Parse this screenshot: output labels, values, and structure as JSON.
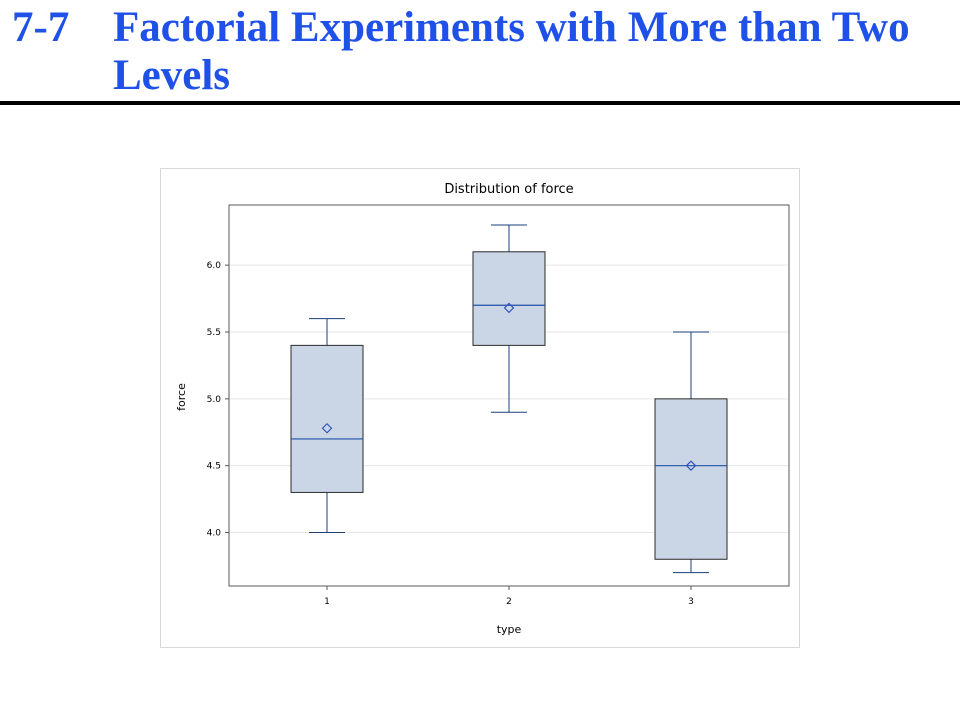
{
  "slide": {
    "number": "7-7",
    "title": "Factorial Experiments with More than Two Levels"
  },
  "colors": {
    "title": "#1f50e8",
    "box_fill": "#cad5e6",
    "box_stroke": "#2a2a2a",
    "whisker": "#1a3f7a",
    "median": "#2150a8",
    "mean_marker": "#2a52b8",
    "grid": "#e6e6e6"
  },
  "chart_data": {
    "type": "boxplot",
    "title": "Distribution of force",
    "xlabel": "type",
    "ylabel": "force",
    "ylim": [
      3.6,
      6.45
    ],
    "yticks": [
      4.0,
      4.5,
      5.0,
      5.5,
      6.0
    ],
    "ytick_labels": [
      "4.0",
      "4.5",
      "5.0",
      "5.5",
      "6.0"
    ],
    "grid": true,
    "categories": [
      "1",
      "2",
      "3"
    ],
    "boxes": [
      {
        "category": "1",
        "min": 4.0,
        "q1": 4.3,
        "median": 4.7,
        "q3": 5.4,
        "max": 5.6,
        "mean": 4.78
      },
      {
        "category": "2",
        "min": 4.9,
        "q1": 5.4,
        "median": 5.7,
        "q3": 6.1,
        "max": 6.3,
        "mean": 5.68
      },
      {
        "category": "3",
        "min": 3.7,
        "q1": 3.8,
        "median": 4.5,
        "q3": 5.0,
        "max": 5.5,
        "mean": 4.5
      }
    ]
  }
}
